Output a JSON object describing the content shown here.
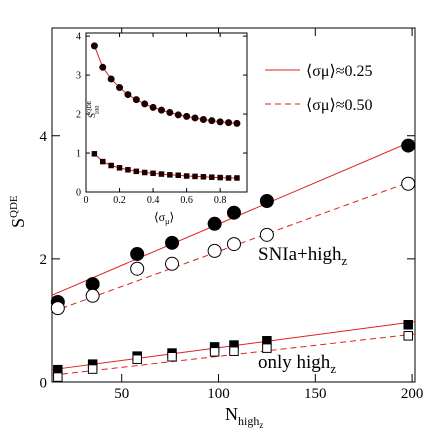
{
  "chart_data": [
    {
      "type": "scatter",
      "xlabel": {
        "base": "N",
        "sub": "high",
        "subsub": "z"
      },
      "ylabel": {
        "base": "S",
        "sup": "QDE"
      },
      "xlim": [
        14,
        201.5
      ],
      "ylim": [
        0,
        5.75
      ],
      "xticks": [
        50,
        100,
        150,
        200
      ],
      "yticks": [
        0,
        2,
        4
      ],
      "x": [
        17,
        35,
        58,
        76,
        98,
        108,
        125,
        198
      ],
      "series": [
        {
          "marker": "filled-circle",
          "color": "#000000",
          "values": [
            1.3,
            1.59,
            2.08,
            2.26,
            2.57,
            2.75,
            2.94,
            3.84
          ]
        },
        {
          "marker": "open-circle",
          "color": "#000000",
          "values": [
            1.2,
            1.4,
            1.84,
            1.92,
            2.13,
            2.24,
            2.39,
            3.22
          ]
        },
        {
          "marker": "filled-square",
          "color": "#000000",
          "values": [
            0.2,
            0.29,
            0.42,
            0.47,
            0.57,
            0.6,
            0.67,
            0.93
          ]
        },
        {
          "marker": "open-square",
          "color": "#000000",
          "values": [
            0.08,
            0.21,
            0.37,
            0.41,
            0.49,
            0.5,
            0.55,
            0.75
          ]
        }
      ],
      "lines": [
        {
          "name": "⟨σμ⟩≈0.25",
          "dash": false,
          "color": "#e0201b",
          "x": [
            14,
            201.5
          ],
          "values": [
            1.41,
            3.93
          ]
        },
        {
          "name": "⟨σμ⟩≈0.50",
          "dash": true,
          "color": "#e0201b",
          "x": [
            14,
            201.5
          ],
          "values": [
            1.14,
            3.28
          ]
        },
        {
          "dash": false,
          "color": "#e0201b",
          "x": [
            14,
            201.5
          ],
          "values": [
            0.2,
            0.98
          ]
        },
        {
          "dash": true,
          "color": "#e0201b",
          "x": [
            14,
            201.5
          ],
          "values": [
            0.11,
            0.78
          ]
        }
      ],
      "annotations": [
        {
          "text": "SNIa+high",
          "sub": "z"
        },
        {
          "text": "only high",
          "sub": "z"
        }
      ]
    },
    {
      "type": "scatter",
      "xlabel": {
        "base": "⟨σ",
        "sub": "μ",
        "end": "⟩"
      },
      "ylabel": {
        "base": "S",
        "sup": "QDE",
        "sub": "100"
      },
      "xlim": [
        0,
        0.96
      ],
      "ylim": [
        0,
        4.08
      ],
      "xticks": [
        0,
        0.2,
        0.4,
        0.6,
        0.8
      ],
      "yticks": [
        0,
        1,
        2,
        3,
        4
      ],
      "x": [
        0.05,
        0.1,
        0.15,
        0.2,
        0.25,
        0.3,
        0.35,
        0.4,
        0.45,
        0.5,
        0.55,
        0.6,
        0.65,
        0.7,
        0.75,
        0.8,
        0.85,
        0.9
      ],
      "series": [
        {
          "marker": "filled-circle",
          "color": "#1a0000",
          "line_color": "#e0201b",
          "values": [
            3.75,
            3.2,
            2.9,
            2.68,
            2.5,
            2.37,
            2.26,
            2.17,
            2.1,
            2.04,
            1.98,
            1.94,
            1.9,
            1.86,
            1.83,
            1.8,
            1.78,
            1.76
          ]
        },
        {
          "marker": "filled-square",
          "color": "#1a0000",
          "line_color": "#e0201b",
          "values": [
            0.98,
            0.78,
            0.68,
            0.62,
            0.57,
            0.53,
            0.5,
            0.48,
            0.46,
            0.44,
            0.43,
            0.41,
            0.4,
            0.39,
            0.38,
            0.37,
            0.36,
            0.36
          ]
        }
      ]
    }
  ]
}
